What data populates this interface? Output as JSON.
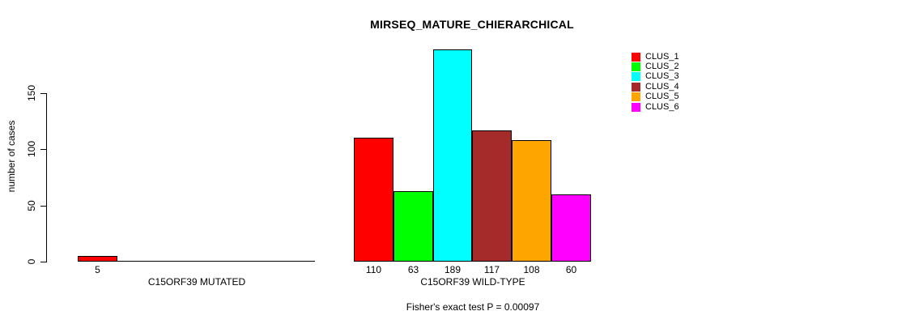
{
  "title": "MIRSEQ_MATURE_CHIERARCHICAL",
  "chart_data": {
    "type": "bar",
    "title": "MIRSEQ_MATURE_CHIERARCHICAL",
    "xlabel": "",
    "ylabel": "number of cases",
    "ylim": [
      0,
      150
    ],
    "yticks": [
      0,
      50,
      100,
      150
    ],
    "grid": false,
    "legend_position": "top-right",
    "series_labels": [
      "CLUS_1",
      "CLUS_2",
      "CLUS_3",
      "CLUS_4",
      "CLUS_5",
      "CLUS_6"
    ],
    "series_colors": [
      "#ff0000",
      "#00ff00",
      "#00ffff",
      "#a52a2a",
      "#ffa500",
      "#ff00ff"
    ],
    "groups": [
      {
        "label": "C15ORF39 MUTATED",
        "values": [
          5,
          0,
          0,
          0,
          0,
          0
        ]
      },
      {
        "label": "C15ORF39 WILD-TYPE",
        "values": [
          110,
          63,
          189,
          117,
          108,
          60
        ]
      }
    ],
    "annotation": "Fisher's exact test P = 0.00097"
  }
}
